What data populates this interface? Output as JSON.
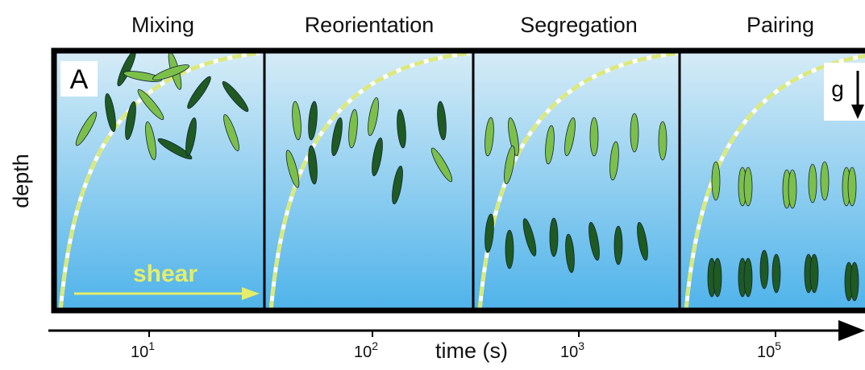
{
  "panel_label": "A",
  "stages": [
    "Mixing",
    "Reorientation",
    "Segregation",
    "Pairing"
  ],
  "y_axis_label": "depth",
  "x_axis_label": "time (s)",
  "shear_label": "shear",
  "gravity_label": "g",
  "time_ticks": [
    {
      "base": "10",
      "exp": "1"
    },
    {
      "base": "10",
      "exp": "2"
    },
    {
      "base": "10",
      "exp": "3"
    },
    {
      "base": "10",
      "exp": "5"
    }
  ]
}
